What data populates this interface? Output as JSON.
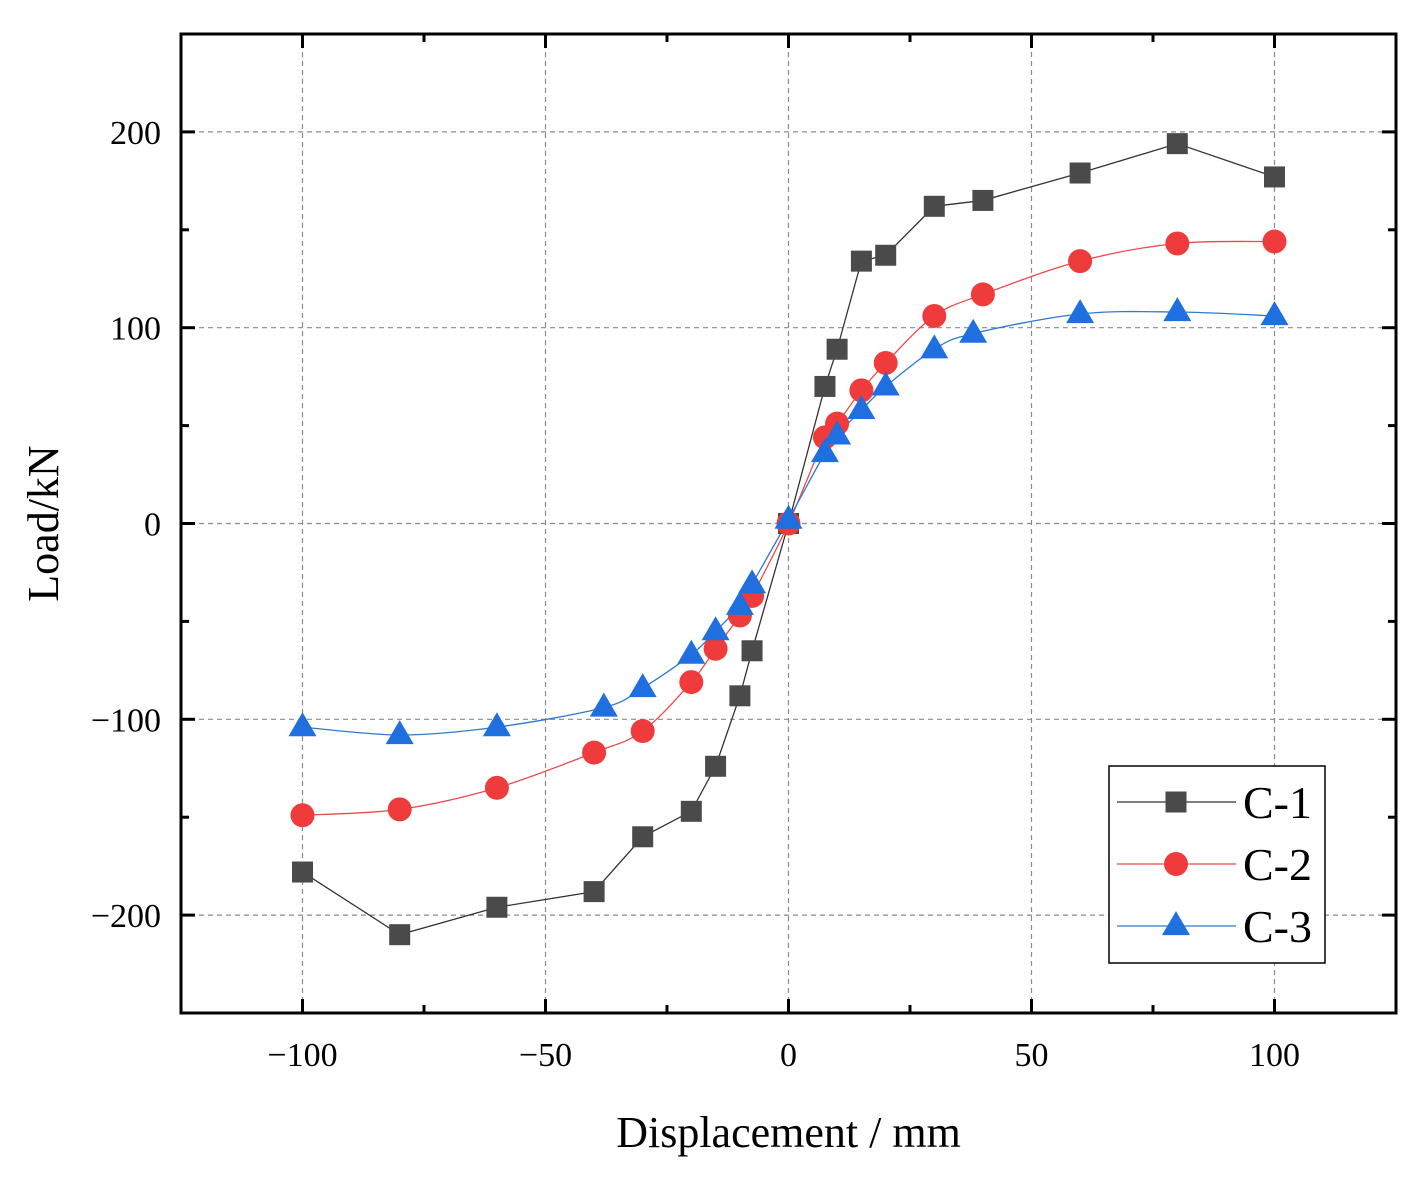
{
  "chart_data": {
    "type": "line",
    "xlabel": "Displacement / mm",
    "ylabel": "Load/kN",
    "xlim": [
      -125,
      125
    ],
    "ylim": [
      -250,
      250
    ],
    "xticks": [
      -100,
      -50,
      0,
      50,
      100
    ],
    "yticks": [
      -200,
      -100,
      0,
      100,
      200
    ],
    "xtick_labels": [
      "−100",
      "−50",
      "0",
      "50",
      "100"
    ],
    "ytick_labels": [
      "−200",
      "−100",
      "0",
      "100",
      "200"
    ],
    "grid": true,
    "legend_position": "bottom-right",
    "series": [
      {
        "name": "C-1",
        "marker": "square",
        "color": "#4a4a4a",
        "line_color": "#333333",
        "x": [
          -100,
          -80,
          -60,
          -40,
          -30,
          -20,
          -15,
          -10,
          -7.5,
          0,
          7.5,
          10,
          15,
          20,
          30,
          40,
          60,
          80,
          100
        ],
        "y": [
          -178,
          -210,
          -196,
          -188,
          -160,
          -147,
          -124,
          -88,
          -65,
          0,
          70,
          89,
          134,
          137,
          162,
          165,
          179,
          194,
          177
        ]
      },
      {
        "name": "C-2",
        "marker": "circle",
        "color": "#ef3b3b",
        "line_color": "#e84a4a",
        "x": [
          -100,
          -80,
          -60,
          -40,
          -30,
          -20,
          -15,
          -10,
          -7.5,
          0,
          7.5,
          10,
          15,
          20,
          30,
          40,
          60,
          80,
          100
        ],
        "y": [
          -149,
          -146,
          -135,
          -117,
          -106,
          -81,
          -64,
          -47,
          -37,
          0,
          44,
          51,
          68,
          82,
          106,
          117,
          134,
          143,
          144
        ]
      },
      {
        "name": "C-3",
        "marker": "triangle",
        "color": "#1f6fe0",
        "line_color": "#2f7ad0",
        "x": [
          -100,
          -80,
          -60,
          -38,
          -30,
          -20,
          -15,
          -10,
          -7.5,
          0,
          7.5,
          10,
          15,
          20,
          30,
          38,
          60,
          80,
          100
        ],
        "y": [
          -104,
          -108,
          -104,
          -94,
          -84,
          -67,
          -55,
          -42,
          -31,
          2,
          36,
          45,
          58,
          70,
          89,
          97,
          107,
          108,
          106
        ]
      }
    ]
  }
}
